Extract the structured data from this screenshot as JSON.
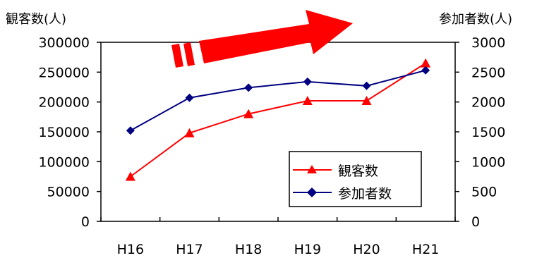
{
  "chart_data": {
    "type": "line",
    "categories": [
      "H16",
      "H17",
      "H18",
      "H19",
      "H20",
      "H21"
    ],
    "y_left_label": "観客数(人)",
    "y_right_label": "参加者数(人)",
    "y_left_ticks": [
      "0",
      "50000",
      "100000",
      "150000",
      "200000",
      "250000",
      "300000"
    ],
    "y_right_ticks": [
      "0",
      "500",
      "1000",
      "1500",
      "2000",
      "2500",
      "3000"
    ],
    "y_left_lim": [
      0,
      300000
    ],
    "y_right_lim": [
      0,
      3000
    ],
    "series": [
      {
        "name": "観客数",
        "axis": "left",
        "color": "#ff0000",
        "marker": "triangle",
        "values": [
          75000,
          148000,
          180000,
          202000,
          202000,
          265000
        ]
      },
      {
        "name": "参加者数",
        "axis": "right",
        "color": "#000080",
        "marker": "diamond",
        "values": [
          1520,
          2070,
          2240,
          2340,
          2270,
          2530
        ]
      }
    ],
    "legend_position": "bottom-right",
    "decoration_color": "#ff0000"
  }
}
